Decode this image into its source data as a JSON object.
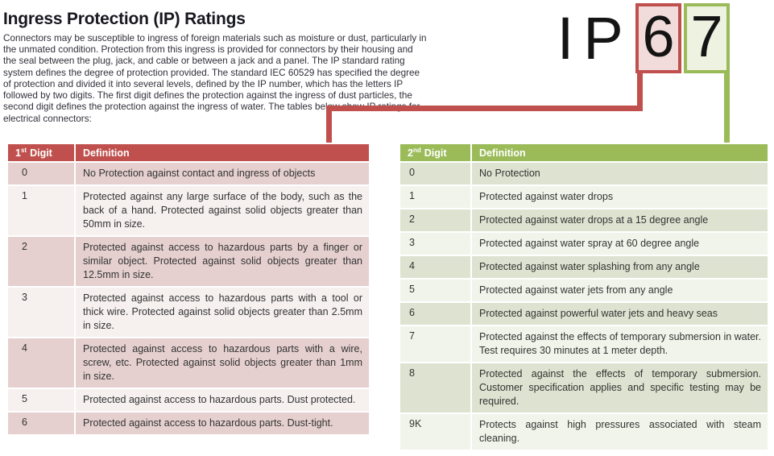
{
  "page": {
    "title": "Ingress Protection (IP) Ratings",
    "intro": "Connectors may be susceptible to ingress of foreign materials such as moisture or dust, particularly in the unmated condition. Protection from this ingress is provided for connectors by their housing and the seal between the plug, jack, and cable or between a jack and a panel. The IP standard rating system defines the degree of protection provided. The standard IEC 60529 has specified the degree of protection and divided it into several levels, defined by the IP number, which has the letters IP followed by two digits. The first digit defines the protection against the ingress of dust particles, the second digit defines the protection against the ingress of water. The tables below show IP ratings for electrical connectors:"
  },
  "ip_badge": {
    "letter_i": "I",
    "letter_p": "P",
    "first_digit": "6",
    "second_digit": "7"
  },
  "colors": {
    "red_accent": "#c0504d",
    "red_box_fill": "#f2dcdb",
    "red_row_dark": "#e5d0cf",
    "red_row_light": "#f6f0ef",
    "green_accent": "#9bbb59",
    "green_box_fill": "#eef2e0",
    "green_row_dark": "#dde3d0",
    "green_row_light": "#f1f4ea"
  },
  "first_digit_table": {
    "header": {
      "digit_number": "1",
      "digit_ordinal": "st",
      "digit_word": "Digit",
      "definition": "Definition"
    },
    "rows": [
      {
        "digit": "0",
        "definition": "No Protection against contact and ingress of objects"
      },
      {
        "digit": "1",
        "definition": "Protected against any large surface of the body, such as the back of a hand. Protected against solid objects greater than 50mm in size."
      },
      {
        "digit": "2",
        "definition": "Protected against access to hazardous parts by a finger or similar object. Protected against solid objects greater than 12.5mm in size."
      },
      {
        "digit": "3",
        "definition": "Protected against access to hazardous parts with a tool or thick wire. Protected against solid objects greater than 2.5mm in size."
      },
      {
        "digit": "4",
        "definition": "Protected against access to hazardous parts with a wire, screw, etc. Protected against solid objects greater than 1mm in size."
      },
      {
        "digit": "5",
        "definition": "Protected against access to hazardous parts. Dust protected."
      },
      {
        "digit": "6",
        "definition": "Protected against access to hazardous parts. Dust-tight."
      }
    ]
  },
  "second_digit_table": {
    "header": {
      "digit_number": "2",
      "digit_ordinal": "nd",
      "digit_word": "Digit",
      "definition": "Definition"
    },
    "rows": [
      {
        "digit": "0",
        "definition": "No Protection"
      },
      {
        "digit": "1",
        "definition": "Protected against water drops"
      },
      {
        "digit": "2",
        "definition": "Protected against water drops at a 15 degree angle"
      },
      {
        "digit": "3",
        "definition": "Protected against water spray at 60 degree angle"
      },
      {
        "digit": "4",
        "definition": "Protected against water splashing from any angle"
      },
      {
        "digit": "5",
        "definition": "Protected against water jets from any angle"
      },
      {
        "digit": "6",
        "definition": "Protected against powerful water jets and heavy seas"
      },
      {
        "digit": "7",
        "definition": "Protected against the effects of temporary submersion in water. Test requires 30 minutes at 1 meter depth."
      },
      {
        "digit": "8",
        "definition": "Protected against the effects of temporary submersion. Customer specification applies and specific testing may be required."
      },
      {
        "digit": "9K",
        "definition": "Protects against high pressures associated with steam cleaning."
      }
    ]
  }
}
